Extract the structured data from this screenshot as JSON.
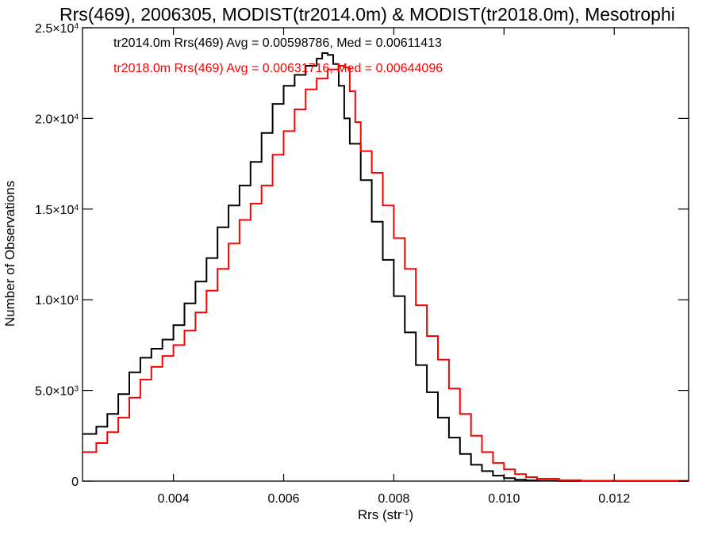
{
  "chart_data": {
    "type": "line",
    "title": "Rrs(469), 2006305, MODIST(tr2014.0m) & MODIST(tr2018.0m), Mesotrophi",
    "xlabel_base": "Rrs (str",
    "xlabel_sup": "-1",
    "xlabel_close": ")",
    "ylabel": "Number of Observations",
    "xlim": [
      0.00235,
      0.01335
    ],
    "ylim": [
      0,
      25000
    ],
    "x_ticks": [
      {
        "value": 0.004,
        "label": "0.004"
      },
      {
        "value": 0.006,
        "label": "0.006"
      },
      {
        "value": 0.008,
        "label": "0.008"
      },
      {
        "value": 0.01,
        "label": "0.010"
      },
      {
        "value": 0.012,
        "label": "0.012"
      }
    ],
    "y_ticks": [
      {
        "value": 0,
        "base": "0",
        "exp": ""
      },
      {
        "value": 5000,
        "base": "5.0×10",
        "exp": "3"
      },
      {
        "value": 10000,
        "base": "1.0×10",
        "exp": "4"
      },
      {
        "value": 15000,
        "base": "1.5×10",
        "exp": "4"
      },
      {
        "value": 20000,
        "base": "2.0×10",
        "exp": "4"
      },
      {
        "value": 25000,
        "base": "2.5×10",
        "exp": "4"
      }
    ],
    "legend": [
      {
        "text": "tr2014.0m Rrs(469) Avg = 0.00598786, Med = 0.00611413",
        "color": "#000000"
      },
      {
        "text": "tr2018.0m Rrs(469) Avg = 0.00631716, Med = 0.00644096",
        "color": "#ff0000"
      }
    ],
    "series": [
      {
        "color": "#000000",
        "points": [
          [
            0.00235,
            2600
          ],
          [
            0.0026,
            3000
          ],
          [
            0.0028,
            3700
          ],
          [
            0.003,
            4800
          ],
          [
            0.0032,
            6000
          ],
          [
            0.0034,
            6800
          ],
          [
            0.0036,
            7300
          ],
          [
            0.0038,
            7800
          ],
          [
            0.004,
            8600
          ],
          [
            0.0042,
            9800
          ],
          [
            0.0044,
            11000
          ],
          [
            0.0046,
            12300
          ],
          [
            0.0048,
            14000
          ],
          [
            0.005,
            15200
          ],
          [
            0.0052,
            16300
          ],
          [
            0.0054,
            17600
          ],
          [
            0.0056,
            19200
          ],
          [
            0.0058,
            20800
          ],
          [
            0.006,
            21800
          ],
          [
            0.0062,
            22400
          ],
          [
            0.0064,
            22900
          ],
          [
            0.0066,
            23300
          ],
          [
            0.0067,
            23600
          ],
          [
            0.0068,
            23500
          ],
          [
            0.0069,
            23000
          ],
          [
            0.007,
            21800
          ],
          [
            0.0071,
            20000
          ],
          [
            0.0072,
            18600
          ],
          [
            0.0074,
            16600
          ],
          [
            0.0076,
            14300
          ],
          [
            0.0078,
            12200
          ],
          [
            0.008,
            10200
          ],
          [
            0.0082,
            8200
          ],
          [
            0.0084,
            6400
          ],
          [
            0.0086,
            4900
          ],
          [
            0.0088,
            3500
          ],
          [
            0.009,
            2400
          ],
          [
            0.0092,
            1500
          ],
          [
            0.0094,
            900
          ],
          [
            0.0096,
            550
          ],
          [
            0.0098,
            300
          ],
          [
            0.01,
            160
          ],
          [
            0.0102,
            80
          ],
          [
            0.0104,
            40
          ],
          [
            0.0106,
            20
          ],
          [
            0.011,
            10
          ],
          [
            0.01335,
            0
          ]
        ]
      },
      {
        "color": "#ff0000",
        "points": [
          [
            0.00235,
            1600
          ],
          [
            0.0026,
            2100
          ],
          [
            0.0028,
            2700
          ],
          [
            0.003,
            3500
          ],
          [
            0.0032,
            4600
          ],
          [
            0.0034,
            5600
          ],
          [
            0.0036,
            6300
          ],
          [
            0.0038,
            6900
          ],
          [
            0.004,
            7500
          ],
          [
            0.0042,
            8300
          ],
          [
            0.0044,
            9300
          ],
          [
            0.0046,
            10500
          ],
          [
            0.0048,
            11700
          ],
          [
            0.005,
            13100
          ],
          [
            0.0052,
            14400
          ],
          [
            0.0054,
            15300
          ],
          [
            0.0056,
            16300
          ],
          [
            0.0058,
            18000
          ],
          [
            0.006,
            19300
          ],
          [
            0.0062,
            20500
          ],
          [
            0.0064,
            21600
          ],
          [
            0.0066,
            22200
          ],
          [
            0.0068,
            22700
          ],
          [
            0.007,
            22900
          ],
          [
            0.0071,
            22800
          ],
          [
            0.0072,
            21500
          ],
          [
            0.0073,
            19800
          ],
          [
            0.0074,
            18200
          ],
          [
            0.0076,
            17000
          ],
          [
            0.0078,
            15200
          ],
          [
            0.008,
            13400
          ],
          [
            0.0082,
            11700
          ],
          [
            0.0084,
            9700
          ],
          [
            0.0086,
            8000
          ],
          [
            0.0088,
            6700
          ],
          [
            0.009,
            5100
          ],
          [
            0.0092,
            3700
          ],
          [
            0.0094,
            2500
          ],
          [
            0.0096,
            1600
          ],
          [
            0.0098,
            1000
          ],
          [
            0.01,
            650
          ],
          [
            0.0102,
            380
          ],
          [
            0.0104,
            220
          ],
          [
            0.0106,
            130
          ],
          [
            0.011,
            50
          ],
          [
            0.0114,
            20
          ],
          [
            0.012,
            8
          ],
          [
            0.01335,
            0
          ]
        ]
      }
    ]
  }
}
